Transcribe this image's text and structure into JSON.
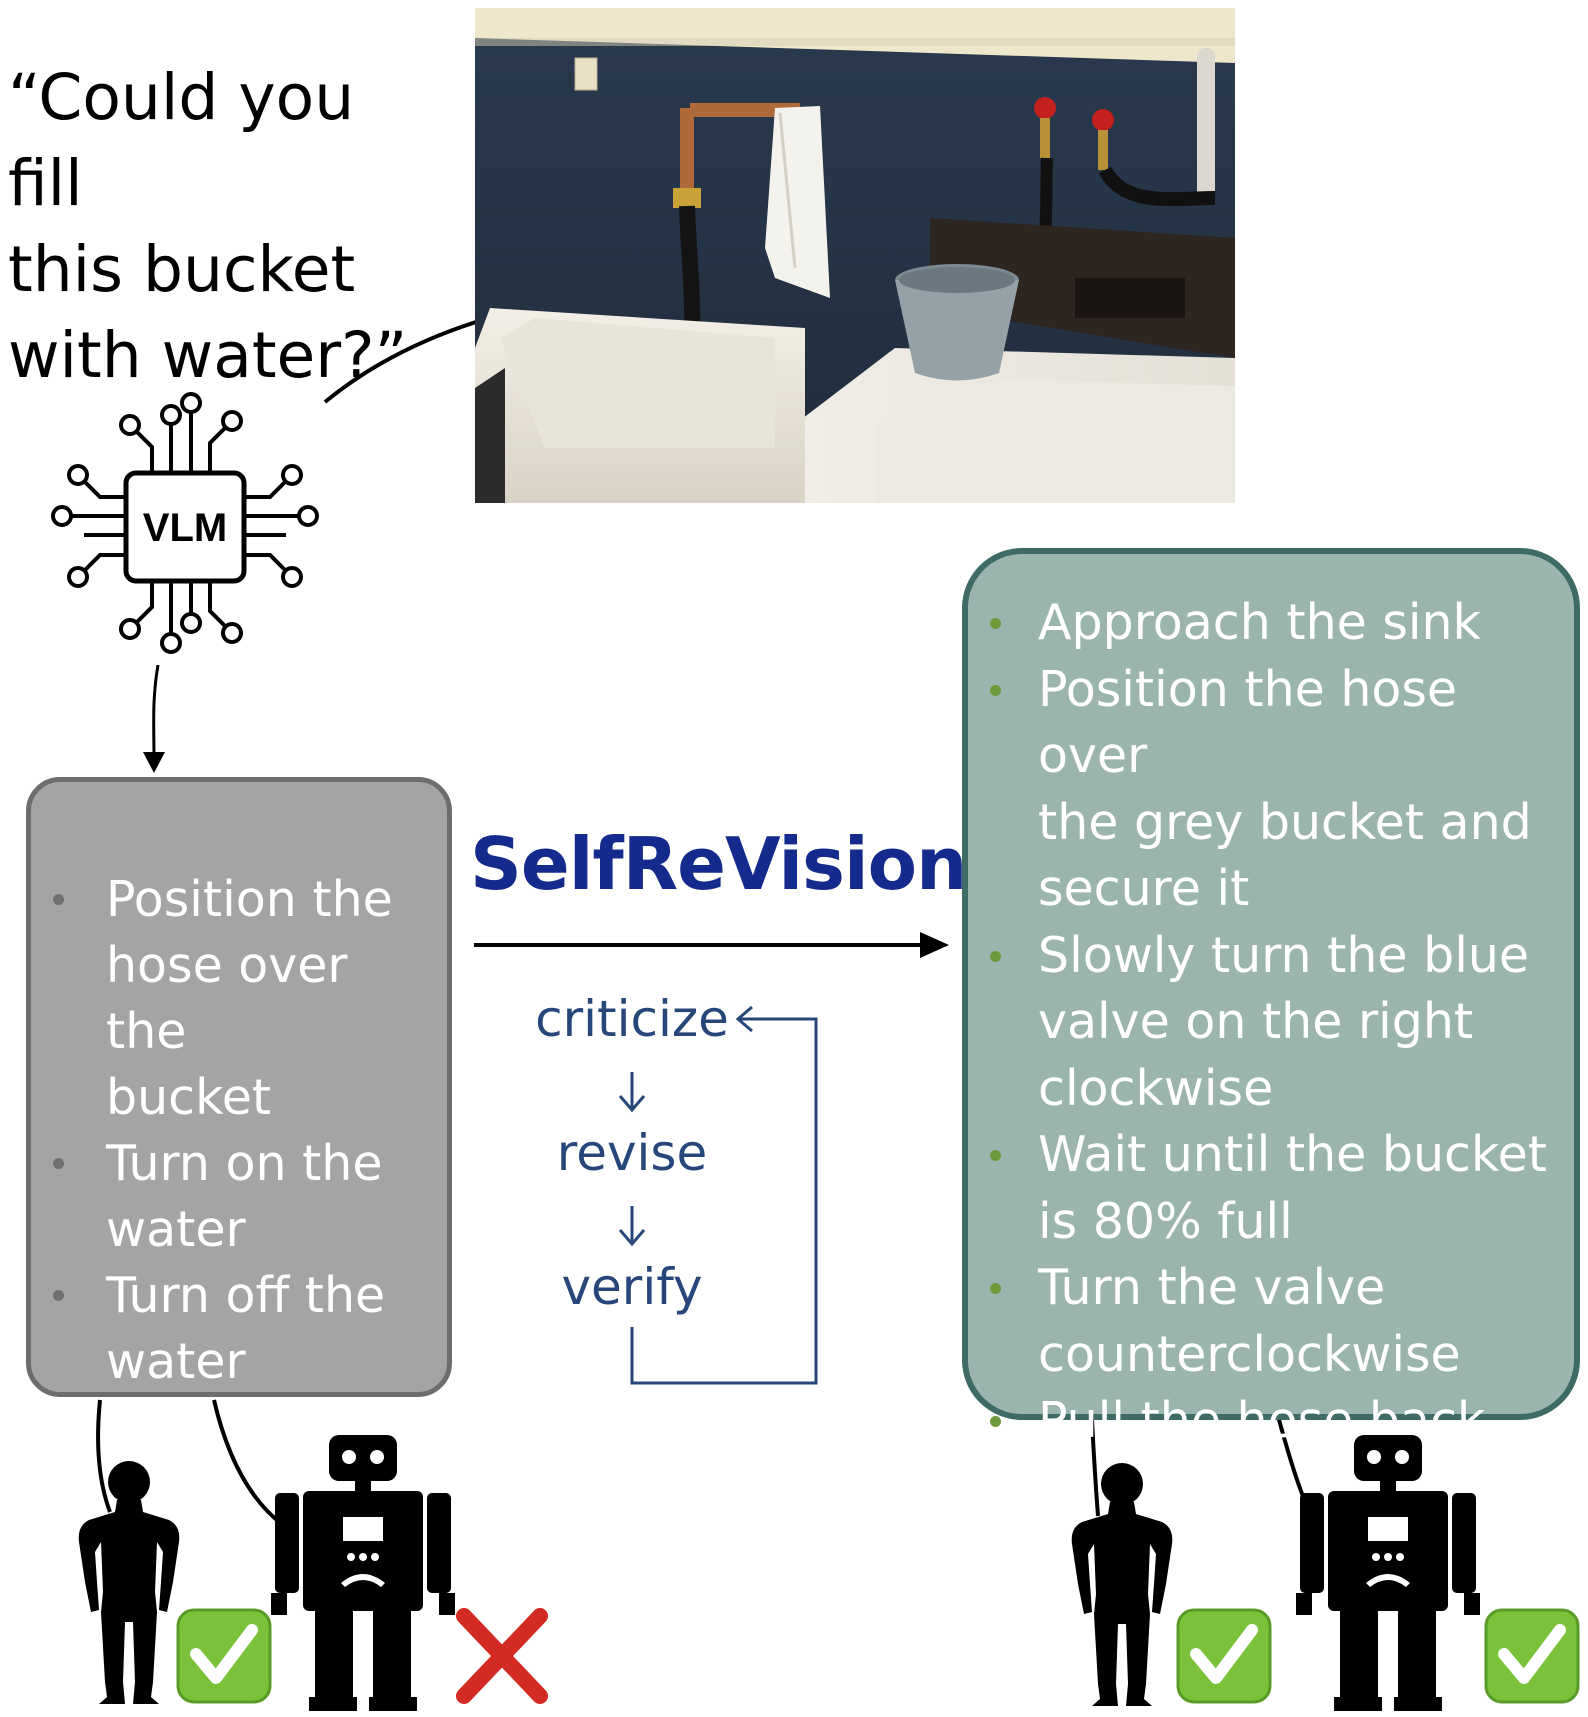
{
  "quote": {
    "lines": [
      "“Could you fill",
      "this bucket",
      "with water?”"
    ]
  },
  "vlm": {
    "label": "VLM",
    "icon": "chip-icon"
  },
  "left_box": {
    "items": [
      [
        "Position the",
        "hose over the",
        "bucket"
      ],
      [
        "Turn on the",
        "water"
      ],
      [
        "Turn off the",
        "water"
      ]
    ]
  },
  "method": {
    "name": "SelfReVision",
    "loop": {
      "criticize": "criticize",
      "revise": "revise",
      "verify": "verify"
    }
  },
  "right_box": {
    "items": [
      [
        "Approach the sink"
      ],
      [
        "Position the hose over",
        "the grey bucket and",
        "secure it"
      ],
      [
        "Slowly turn the blue",
        "valve on the right",
        "clockwise"
      ],
      [
        "Wait until the bucket",
        "is 80% full"
      ],
      [
        "Turn the valve",
        "counterclockwise"
      ],
      [
        "Pull the hose back"
      ]
    ]
  },
  "outcomes": {
    "left_human": "check-mark-icon",
    "left_robot": "cross-mark-icon",
    "right_human": "check-mark-icon",
    "right_robot": "check-mark-icon"
  },
  "colors": {
    "left_box_fill": "#a4a4a4",
    "left_box_border": "#6d6d6d",
    "right_box_fill": "#9cb4ae",
    "right_box_border": "#3f6b66",
    "method_title": "#142a8c",
    "loop": "#27477a",
    "check_green": "#79c23a",
    "cross_red": "#d42a24"
  }
}
